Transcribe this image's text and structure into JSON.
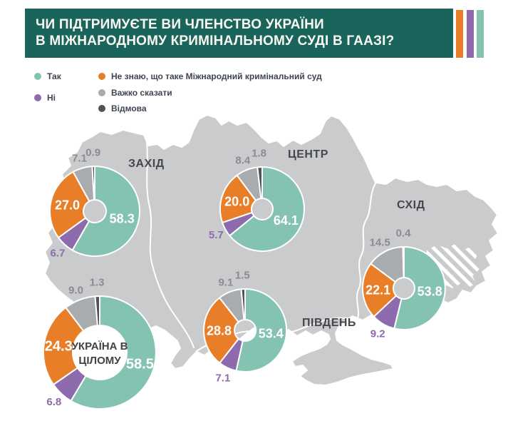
{
  "title": {
    "line1": "ЧИ ПІДТРИМУЄТЕ ВИ ЧЛЕНСТВО УКРАЇНИ",
    "line2": "В МІЖНАРОДНОМУ КРИМІНАЛЬНОМУ СУДІ В ГААЗІ?"
  },
  "legend": {
    "yes": "Так",
    "no": "Ні",
    "dont_know": "Не знаю, що таке Міжнародний кримінальний суд",
    "hard_to_say": "Важко сказати",
    "refusal": "Відмова"
  },
  "colors": {
    "yes": "#84C3B2",
    "no": "#8D6BAC",
    "dont_know": "#E87E27",
    "hard_to_say": "#A9ACAF",
    "refusal": "#515254",
    "header_bg": "#1A655B",
    "map_fill": "#C9CBCD",
    "outside_label": "#8A8C8F"
  },
  "chart_data": {
    "type": "pie",
    "subtype": "donut-small-multiples-on-map",
    "title": "ЧИ ПІДТРИМУЄТЕ ВИ ЧЛЕНСТВО УКРАЇНИ В МІЖНАРОДНОМУ КРИМІНАЛЬНОМУ СУДІ В ГААЗІ?",
    "answer_options": [
      "Так",
      "Ні",
      "Не знаю, що таке Міжнародний кримінальний суд",
      "Важко сказати",
      "Відмова"
    ],
    "units": "%",
    "charts": [
      {
        "region": "ЗАХІД",
        "values": [
          58.3,
          6.7,
          27.0,
          7.1,
          0.9
        ]
      },
      {
        "region": "ЦЕНТР",
        "values": [
          64.1,
          5.7,
          20.0,
          8.4,
          1.8
        ]
      },
      {
        "region": "СХІД",
        "values": [
          53.8,
          9.2,
          22.1,
          14.5,
          0.4
        ]
      },
      {
        "region": "ПІВДЕНЬ",
        "values": [
          53.4,
          7.1,
          28.8,
          9.1,
          1.5
        ]
      },
      {
        "region": "УКРАЇНА В ЦІЛОМУ",
        "values": [
          58.5,
          6.8,
          24.3,
          9.0,
          1.3
        ]
      }
    ]
  }
}
